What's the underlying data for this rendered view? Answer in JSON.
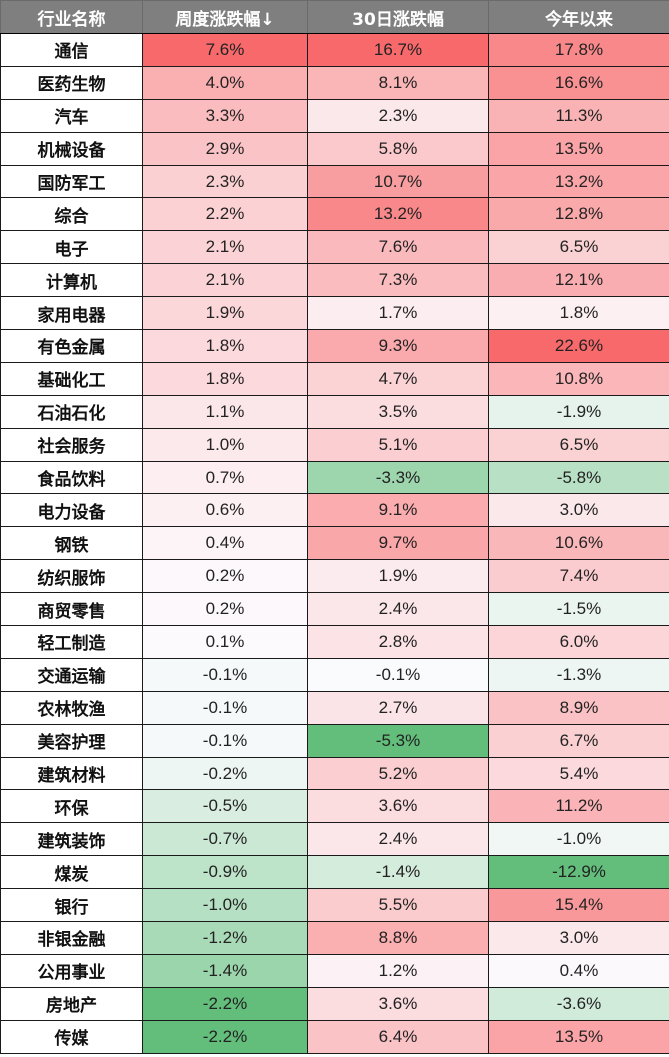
{
  "table": {
    "headers": [
      "行业名称",
      "周度涨跌幅↓",
      "30日涨跌幅",
      "今年以来"
    ],
    "rows": [
      {
        "name": "通信",
        "week": "7.6%",
        "d30": "16.7%",
        "ytd": "17.8%"
      },
      {
        "name": "医药生物",
        "week": "4.0%",
        "d30": "8.1%",
        "ytd": "16.6%"
      },
      {
        "name": "汽车",
        "week": "3.3%",
        "d30": "2.3%",
        "ytd": "11.3%"
      },
      {
        "name": "机械设备",
        "week": "2.9%",
        "d30": "5.8%",
        "ytd": "13.5%"
      },
      {
        "name": "国防军工",
        "week": "2.3%",
        "d30": "10.7%",
        "ytd": "13.2%"
      },
      {
        "name": "综合",
        "week": "2.2%",
        "d30": "13.2%",
        "ytd": "12.8%"
      },
      {
        "name": "电子",
        "week": "2.1%",
        "d30": "7.6%",
        "ytd": "6.5%"
      },
      {
        "name": "计算机",
        "week": "2.1%",
        "d30": "7.3%",
        "ytd": "12.1%"
      },
      {
        "name": "家用电器",
        "week": "1.9%",
        "d30": "1.7%",
        "ytd": "1.8%"
      },
      {
        "name": "有色金属",
        "week": "1.8%",
        "d30": "9.3%",
        "ytd": "22.6%"
      },
      {
        "name": "基础化工",
        "week": "1.8%",
        "d30": "4.7%",
        "ytd": "10.8%"
      },
      {
        "name": "石油石化",
        "week": "1.1%",
        "d30": "3.5%",
        "ytd": "-1.9%"
      },
      {
        "name": "社会服务",
        "week": "1.0%",
        "d30": "5.1%",
        "ytd": "6.5%"
      },
      {
        "name": "食品饮料",
        "week": "0.7%",
        "d30": "-3.3%",
        "ytd": "-5.8%"
      },
      {
        "name": "电力设备",
        "week": "0.6%",
        "d30": "9.1%",
        "ytd": "3.0%"
      },
      {
        "name": "钢铁",
        "week": "0.4%",
        "d30": "9.7%",
        "ytd": "10.6%"
      },
      {
        "name": "纺织服饰",
        "week": "0.2%",
        "d30": "1.9%",
        "ytd": "7.4%"
      },
      {
        "name": "商贸零售",
        "week": "0.2%",
        "d30": "2.4%",
        "ytd": "-1.5%"
      },
      {
        "name": "轻工制造",
        "week": "0.1%",
        "d30": "2.8%",
        "ytd": "6.0%"
      },
      {
        "name": "交通运输",
        "week": "-0.1%",
        "d30": "-0.1%",
        "ytd": "-1.3%"
      },
      {
        "name": "农林牧渔",
        "week": "-0.1%",
        "d30": "2.7%",
        "ytd": "8.9%"
      },
      {
        "name": "美容护理",
        "week": "-0.1%",
        "d30": "-5.3%",
        "ytd": "6.7%"
      },
      {
        "name": "建筑材料",
        "week": "-0.2%",
        "d30": "5.2%",
        "ytd": "5.4%"
      },
      {
        "name": "环保",
        "week": "-0.5%",
        "d30": "3.6%",
        "ytd": "11.2%"
      },
      {
        "name": "建筑装饰",
        "week": "-0.7%",
        "d30": "2.4%",
        "ytd": "-1.0%"
      },
      {
        "name": "煤炭",
        "week": "-0.9%",
        "d30": "-1.4%",
        "ytd": "-12.9%"
      },
      {
        "name": "银行",
        "week": "-1.0%",
        "d30": "5.5%",
        "ytd": "15.4%"
      },
      {
        "name": "非银金融",
        "week": "-1.2%",
        "d30": "8.8%",
        "ytd": "3.0%"
      },
      {
        "name": "公用事业",
        "week": "-1.4%",
        "d30": "1.2%",
        "ytd": "0.4%"
      },
      {
        "name": "房地产",
        "week": "-2.2%",
        "d30": "3.6%",
        "ytd": "-3.6%"
      },
      {
        "name": "传媒",
        "week": "-2.2%",
        "d30": "6.4%",
        "ytd": "13.5%"
      }
    ]
  },
  "colors": {
    "header_bg": "#7f7f7f",
    "header_text": "#ffffff",
    "positive_max": "#f8696b",
    "negative_max": "#63be7b",
    "neutral": "#fcfcff"
  },
  "chart_data": {
    "type": "table",
    "title": "",
    "columns": [
      "行业名称",
      "周度涨跌幅↓",
      "30日涨跌幅",
      "今年以来"
    ],
    "categories": [
      "通信",
      "医药生物",
      "汽车",
      "机械设备",
      "国防军工",
      "综合",
      "电子",
      "计算机",
      "家用电器",
      "有色金属",
      "基础化工",
      "石油石化",
      "社会服务",
      "食品饮料",
      "电力设备",
      "钢铁",
      "纺织服饰",
      "商贸零售",
      "轻工制造",
      "交通运输",
      "农林牧渔",
      "美容护理",
      "建筑材料",
      "环保",
      "建筑装饰",
      "煤炭",
      "银行",
      "非银金融",
      "公用事业",
      "房地产",
      "传媒"
    ],
    "series": [
      {
        "name": "周度涨跌幅",
        "values": [
          7.6,
          4.0,
          3.3,
          2.9,
          2.3,
          2.2,
          2.1,
          2.1,
          1.9,
          1.8,
          1.8,
          1.1,
          1.0,
          0.7,
          0.6,
          0.4,
          0.2,
          0.2,
          0.1,
          -0.1,
          -0.1,
          -0.1,
          -0.2,
          -0.5,
          -0.7,
          -0.9,
          -1.0,
          -1.2,
          -1.4,
          -2.2,
          -2.2
        ]
      },
      {
        "name": "30日涨跌幅",
        "values": [
          16.7,
          8.1,
          2.3,
          5.8,
          10.7,
          13.2,
          7.6,
          7.3,
          1.7,
          9.3,
          4.7,
          3.5,
          5.1,
          -3.3,
          9.1,
          9.7,
          1.9,
          2.4,
          2.8,
          -0.1,
          2.7,
          -5.3,
          5.2,
          3.6,
          2.4,
          -1.4,
          5.5,
          8.8,
          1.2,
          3.6,
          6.4
        ]
      },
      {
        "name": "今年以来",
        "values": [
          17.8,
          16.6,
          11.3,
          13.5,
          13.2,
          12.8,
          6.5,
          12.1,
          1.8,
          22.6,
          10.8,
          -1.9,
          6.5,
          -5.8,
          3.0,
          10.6,
          7.4,
          -1.5,
          6.0,
          -1.3,
          8.9,
          6.7,
          5.4,
          11.2,
          -1.0,
          -12.9,
          15.4,
          3.0,
          0.4,
          -3.6,
          13.5
        ]
      }
    ],
    "unit": "%",
    "sort": "周度涨跌幅 descending",
    "color_scale": "red (positive) - white - green (negative), per column"
  }
}
